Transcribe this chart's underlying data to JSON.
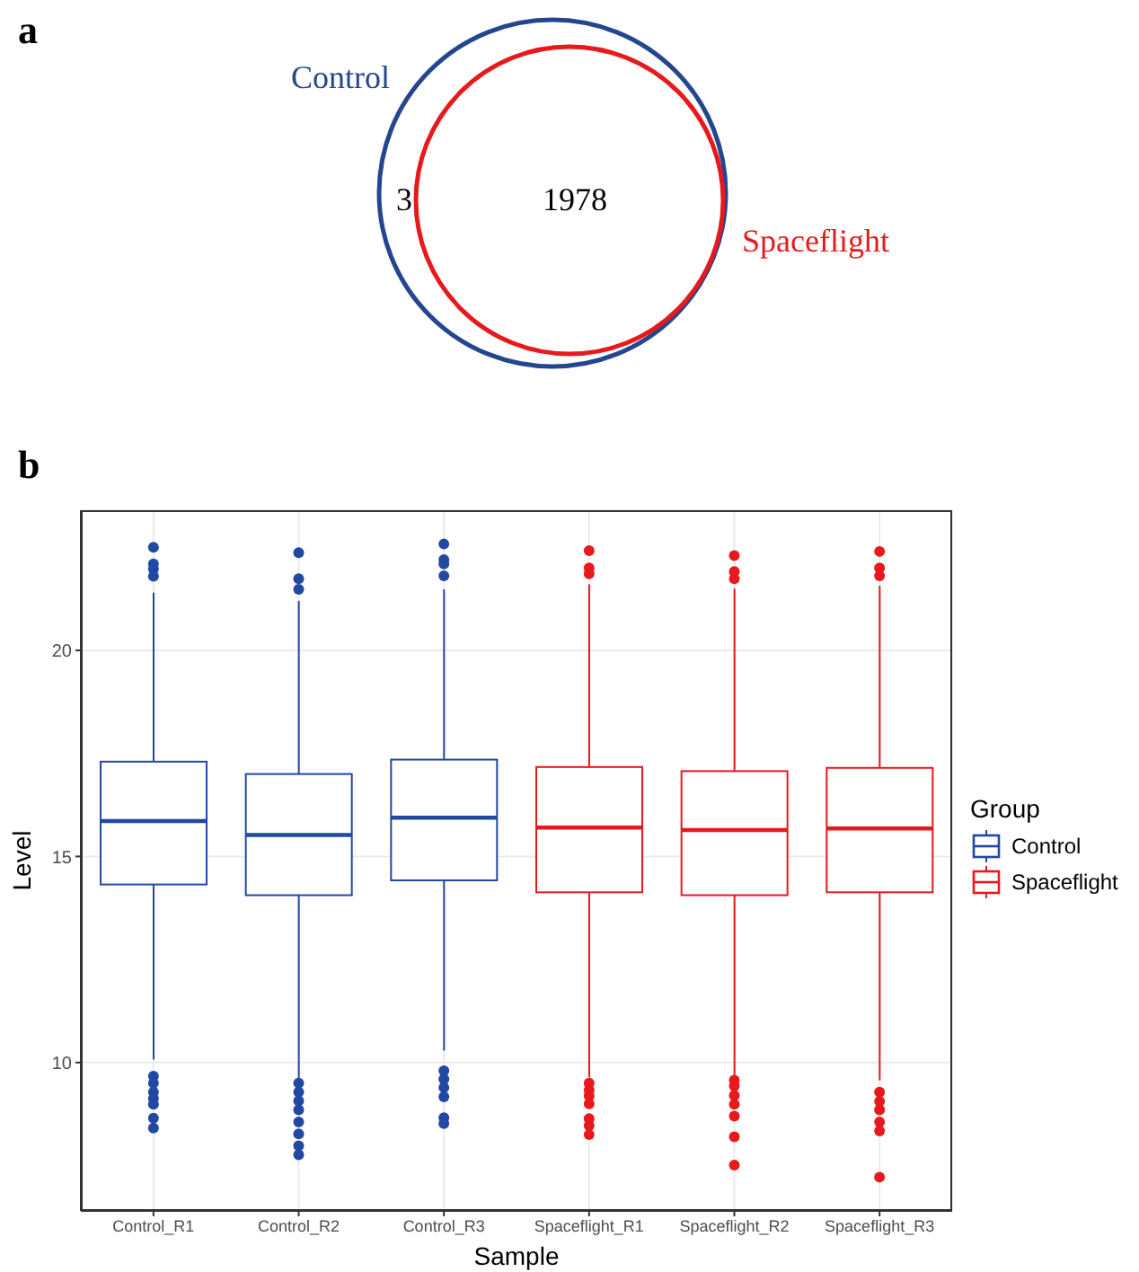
{
  "chart_data": [
    {
      "type": "other",
      "title": "a",
      "categories": [
        "Control",
        "Spaceflight"
      ],
      "colors": [
        "#23468f",
        "#e8191c"
      ],
      "annotations": [
        "3",
        "1978"
      ]
    },
    {
      "type": "box",
      "title": "b",
      "categories": [
        "Control_R1",
        "Control_R2",
        "Control_R3",
        "Spaceflight_R1",
        "Spaceflight_R2",
        "Spaceflight_R3"
      ],
      "xlabel": "Sample",
      "ylabel": "Level",
      "legend_title": "Group",
      "legend": "right",
      "grid": true,
      "ylim": [
        6.4,
        23.4
      ],
      "yticks": [
        10,
        15,
        20
      ],
      "series": [
        {
          "name": "Control",
          "color": "#2148a3",
          "boxes": [
            {
              "low": 10.07,
              "q1": 14.32,
              "median": 15.86,
              "q3": 17.3,
              "high": 21.4,
              "outliers": [
                22.5,
                22.1,
                21.98,
                21.8,
                9.67,
                9.5,
                9.28,
                9.13,
                8.99,
                8.65,
                8.41
              ]
            },
            {
              "low": 9.6,
              "q1": 14.06,
              "median": 15.52,
              "q3": 17.0,
              "high": 21.2,
              "outliers": [
                22.37,
                21.74,
                21.48,
                9.5,
                9.28,
                9.07,
                8.85,
                8.56,
                8.27,
                7.98,
                7.76
              ]
            },
            {
              "low": 10.29,
              "q1": 14.42,
              "median": 15.94,
              "q3": 17.35,
              "high": 21.48,
              "outliers": [
                22.58,
                22.2,
                22.1,
                21.81,
                9.8,
                9.6,
                9.39,
                9.17,
                8.66,
                8.52
              ]
            },
            null,
            null,
            null
          ]
        },
        {
          "name": "Spaceflight",
          "color": "#e8191c",
          "boxes": [
            null,
            null,
            null,
            {
              "low": 9.64,
              "q1": 14.13,
              "median": 15.7,
              "q3": 17.17,
              "high": 21.6,
              "outliers": [
                22.42,
                22.0,
                21.86,
                9.5,
                9.33,
                9.19,
                9.0,
                8.64,
                8.47,
                8.25
              ]
            },
            {
              "low": 9.64,
              "q1": 14.06,
              "median": 15.64,
              "q3": 17.07,
              "high": 21.5,
              "outliers": [
                22.3,
                21.91,
                21.74,
                9.57,
                9.43,
                9.2,
                8.99,
                8.7,
                8.2,
                7.51
              ]
            },
            {
              "low": 9.57,
              "q1": 14.13,
              "median": 15.68,
              "q3": 17.15,
              "high": 21.57,
              "outliers": [
                22.4,
                22.0,
                21.81,
                9.28,
                9.06,
                8.85,
                8.56,
                8.34,
                7.22
              ]
            }
          ]
        }
      ]
    }
  ]
}
